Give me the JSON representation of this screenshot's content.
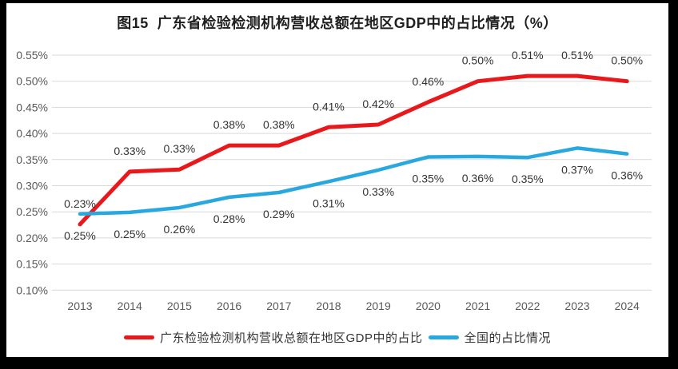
{
  "title": "图15  广东省检验检测机构营收总额在地区GDP中的占比情况（%）",
  "colors": {
    "frame": "#000000",
    "canvas": "#ffffff",
    "gridline": "#d9d9d9",
    "axis_text": "#595959",
    "data_label_text": "#333333",
    "title_text": "#1f1f1f",
    "guangdong_red": "#e8191c",
    "national_blue": "#29a8e0"
  },
  "chart_data": {
    "type": "line",
    "title": "图15  广东省检验检测机构营收总额在地区GDP中的占比情况（%）",
    "categories": [
      "2013",
      "2014",
      "2015",
      "2016",
      "2017",
      "2018",
      "2019",
      "2020",
      "2021",
      "2022",
      "2023",
      "2024"
    ],
    "y_axis": {
      "unit": "%",
      "min": 0.1,
      "max": 0.55,
      "tick_step": 0.05,
      "ticks": [
        "0.55%",
        "0.50%",
        "0.45%",
        "0.40%",
        "0.35%",
        "0.30%",
        "0.25%",
        "0.20%",
        "0.15%",
        "0.10%"
      ]
    },
    "grid": true,
    "legend_position": "bottom",
    "series": [
      {
        "name": "广东检验检测机构营收总额在地区GDP中的占比",
        "color": "#e8191c",
        "stroke_width": 5,
        "label_position": "above",
        "values": [
          0.23,
          0.33,
          0.33,
          0.38,
          0.38,
          0.41,
          0.42,
          0.46,
          0.5,
          0.51,
          0.51,
          0.5
        ],
        "plot_values": [
          0.226,
          0.327,
          0.331,
          0.377,
          0.377,
          0.412,
          0.417,
          0.46,
          0.5,
          0.51,
          0.51,
          0.5
        ],
        "point_labels": [
          "0.23%",
          "0.33%",
          "0.33%",
          "0.38%",
          "0.38%",
          "0.41%",
          "0.42%",
          "0.46%",
          "0.50%",
          "0.51%",
          "0.51%",
          "0.50%"
        ]
      },
      {
        "name": "全国的占比情况",
        "color": "#29a8e0",
        "stroke_width": 4.5,
        "label_position": "below",
        "values": [
          0.25,
          0.25,
          0.26,
          0.28,
          0.29,
          0.31,
          0.33,
          0.35,
          0.36,
          0.35,
          0.37,
          0.36
        ],
        "plot_values": [
          0.246,
          0.249,
          0.258,
          0.278,
          0.287,
          0.308,
          0.33,
          0.355,
          0.356,
          0.354,
          0.372,
          0.361
        ],
        "point_labels": [
          "0.25%",
          "0.25%",
          "0.26%",
          "0.28%",
          "0.29%",
          "0.31%",
          "0.33%",
          "0.35%",
          "0.36%",
          "0.35%",
          "0.37%",
          "0.36%"
        ]
      }
    ]
  }
}
